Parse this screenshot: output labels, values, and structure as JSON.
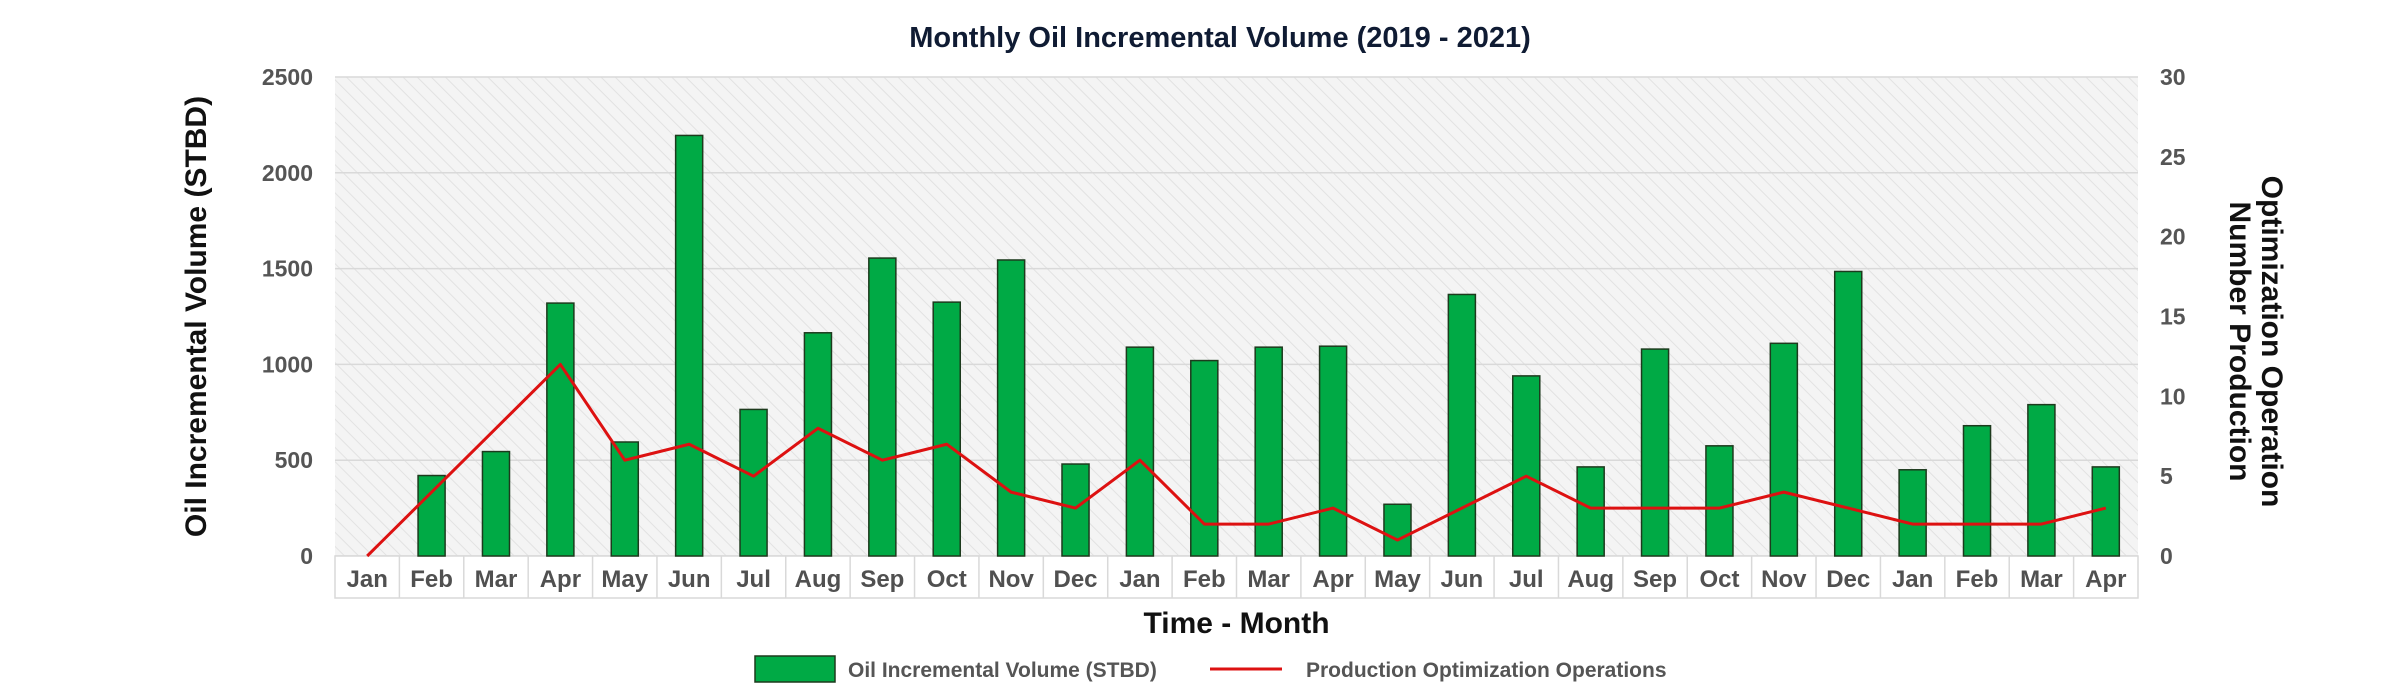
{
  "chart_data": {
    "type": "bar",
    "title": "Monthly Oil Incremental Volume (2019 - 2021)",
    "xlabel": "Time - Month",
    "ylabel": "Oil Incremental Volume (STBD)",
    "y2label": "Number Production Optimization Operation",
    "ylim": [
      0,
      2500
    ],
    "y2lim": [
      0,
      30
    ],
    "yticks": [
      "0",
      "500",
      "1000",
      "1500",
      "2000",
      "2500"
    ],
    "y2ticks": [
      "0",
      "5",
      "10",
      "15",
      "20",
      "25",
      "30"
    ],
    "categories": [
      "Jan",
      "Feb",
      "Mar",
      "Apr",
      "May",
      "Jun",
      "Jul",
      "Aug",
      "Sep",
      "Oct",
      "Nov",
      "Dec",
      "Jan",
      "Feb",
      "Mar",
      "Apr",
      "May",
      "Jun",
      "Jul",
      "Aug",
      "Sep",
      "Oct",
      "Nov",
      "Dec",
      "Jan",
      "Feb",
      "Mar",
      "Apr"
    ],
    "grid": true,
    "legend_position": "bottom",
    "series": [
      {
        "name": "Oil Incremental Volume (STBD)",
        "type": "bar",
        "axis": "left",
        "color": "#00aa45",
        "values": [
          0,
          420,
          545,
          1320,
          595,
          2195,
          765,
          1165,
          1555,
          1325,
          1545,
          480,
          1090,
          1020,
          1090,
          1095,
          270,
          1365,
          940,
          465,
          1080,
          575,
          1110,
          1485,
          450,
          680,
          790,
          465
        ]
      },
      {
        "name": "Production Optimization Operations",
        "type": "line",
        "axis": "right",
        "color": "#dd1111",
        "values": [
          0,
          4,
          8,
          12,
          6,
          7,
          5,
          8,
          6,
          7,
          4,
          3,
          6,
          2,
          2,
          3,
          1,
          3,
          5,
          3,
          3,
          3,
          4,
          3,
          2,
          2,
          2,
          3
        ]
      }
    ]
  }
}
